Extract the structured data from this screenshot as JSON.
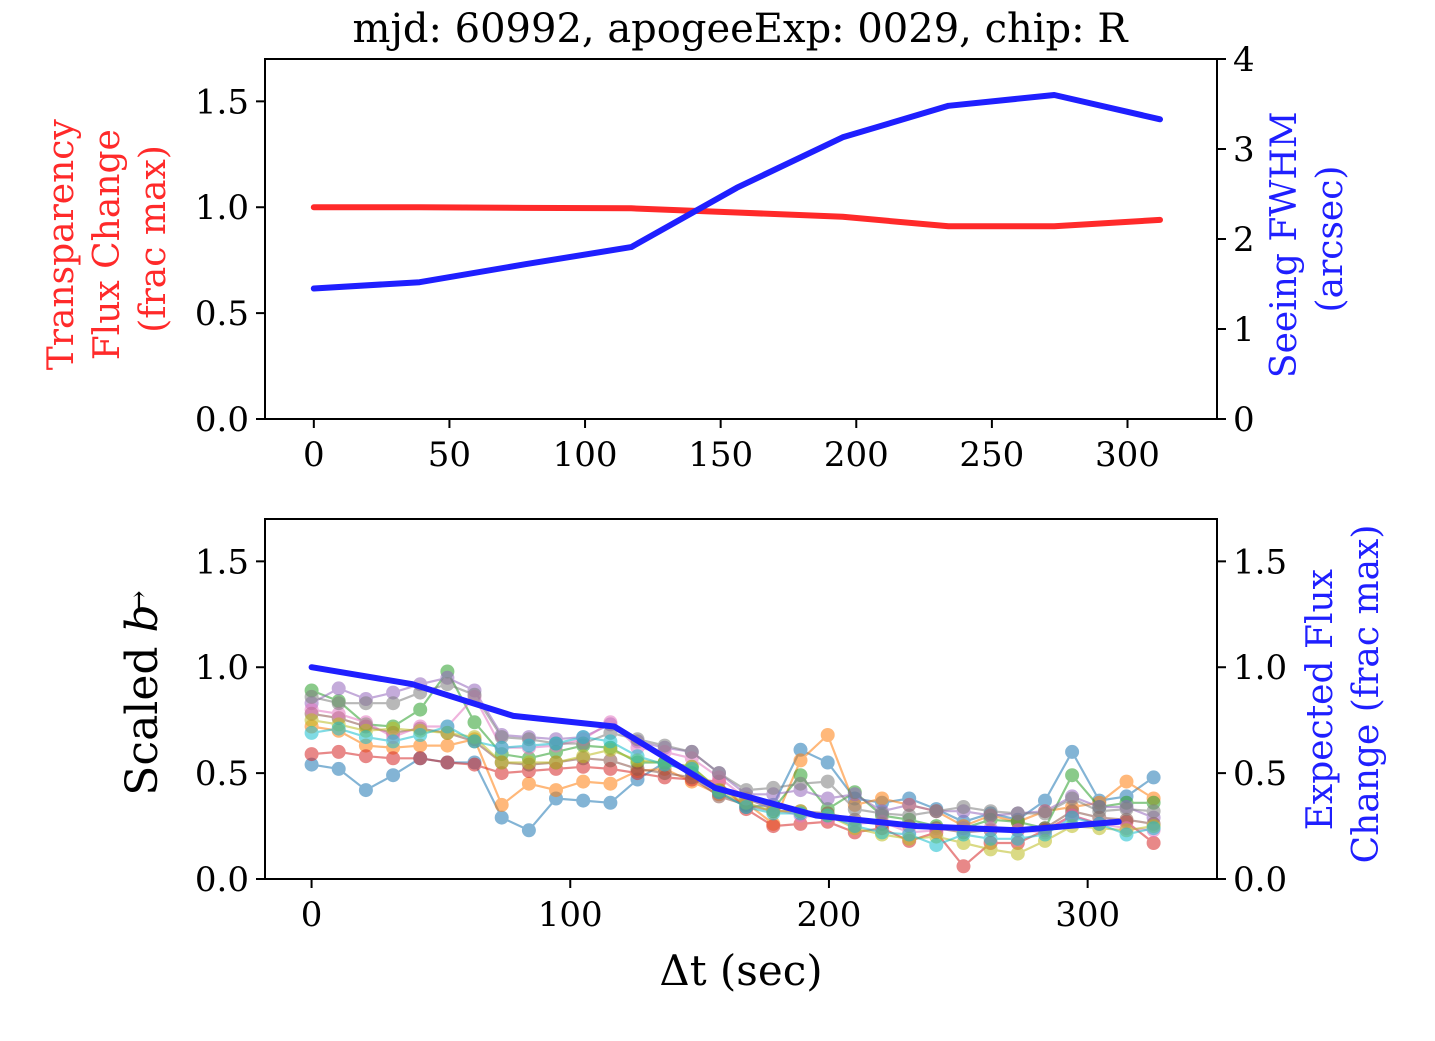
{
  "title": "mjd: 60992,  apogeeExp: 0029, chip: R",
  "colors": {
    "red": "#ff2a2a",
    "blue": "#1f1fff",
    "tab10": [
      "#1f77b4",
      "#ff7f0e",
      "#2ca02c",
      "#d62728",
      "#9467bd",
      "#8c564b",
      "#e377c2",
      "#7f7f7f",
      "#bcbd22",
      "#17becf"
    ]
  },
  "chart_data": [
    {
      "type": "line",
      "name": "top",
      "xlim": [
        -18,
        333
      ],
      "xticks": [
        0,
        50,
        100,
        150,
        200,
        250,
        300
      ],
      "ylabel_left": [
        "Transparency",
        "Flux Change",
        "(frac max)"
      ],
      "ylabel_right": [
        "Seeing FWHM",
        "(arcsec)"
      ],
      "ylim_left": [
        0,
        1.7
      ],
      "yticks_left": [
        "0.0",
        "0.5",
        "1.0",
        "1.5"
      ],
      "ylim_right": [
        0,
        4
      ],
      "yticks_right": [
        "0",
        "1",
        "2",
        "3",
        "4"
      ],
      "series": [
        {
          "name": "Transparency Flux Change",
          "axis": "left",
          "color": "red",
          "x": [
            0,
            39,
            78,
            117,
            156,
            195,
            234,
            273,
            312
          ],
          "values": [
            1.0,
            1.0,
            0.997,
            0.995,
            0.975,
            0.955,
            0.91,
            0.91,
            0.94
          ]
        },
        {
          "name": "Seeing FWHM",
          "axis": "right",
          "color": "blue",
          "x": [
            0,
            39,
            78,
            117,
            156,
            195,
            234,
            273,
            312
          ],
          "values": [
            1.45,
            1.52,
            1.72,
            1.91,
            2.57,
            3.13,
            3.48,
            3.6,
            3.33
          ]
        }
      ]
    },
    {
      "type": "line",
      "name": "bottom",
      "xlim": [
        -18,
        350
      ],
      "xticks": [
        0,
        100,
        200,
        300
      ],
      "xlabel": "Δt (sec)",
      "ylabel_left_text": "Scaled ",
      "ylabel_left_symbol": "b",
      "ylabel_right": [
        "Expected Flux",
        "Change (frac max)"
      ],
      "ylim": [
        0,
        1.7
      ],
      "yticks_left": [
        "0.0",
        "0.5",
        "1.0",
        "1.5"
      ],
      "yticks_right": [
        "0.0",
        "0.5",
        "1.0",
        "1.5"
      ],
      "fibers_x": [
        0,
        10.5,
        21,
        31.5,
        42,
        52.5,
        63,
        73.5,
        84,
        94.5,
        105,
        115.5,
        126,
        136.5,
        147,
        157.5,
        168,
        178.5,
        189,
        199.5,
        210,
        220.5,
        231,
        241.5,
        252,
        262.5,
        273,
        283.5,
        294,
        304.5,
        315,
        325.5
      ],
      "fibers": [
        {
          "color": 0,
          "values": [
            0.54,
            0.52,
            0.42,
            0.49,
            0.57,
            0.55,
            0.55,
            0.29,
            0.23,
            0.38,
            0.37,
            0.36,
            0.47,
            0.55,
            0.5,
            0.41,
            0.34,
            0.35,
            0.61,
            0.55,
            0.38,
            0.36,
            0.38,
            0.33,
            0.27,
            0.31,
            0.28,
            0.37,
            0.6,
            0.37,
            0.39,
            0.48
          ]
        },
        {
          "color": 1,
          "values": [
            0.72,
            0.7,
            0.63,
            0.62,
            0.63,
            0.63,
            0.66,
            0.35,
            0.45,
            0.42,
            0.46,
            0.45,
            0.51,
            0.52,
            0.46,
            0.4,
            0.36,
            0.26,
            0.56,
            0.68,
            0.35,
            0.38,
            0.35,
            0.32,
            0.25,
            0.3,
            0.27,
            0.32,
            0.34,
            0.36,
            0.46,
            0.38
          ]
        },
        {
          "color": 2,
          "values": [
            0.89,
            0.84,
            0.73,
            0.72,
            0.8,
            0.98,
            0.74,
            0.59,
            0.57,
            0.6,
            0.63,
            0.62,
            0.55,
            0.55,
            0.53,
            0.42,
            0.38,
            0.33,
            0.49,
            0.33,
            0.41,
            0.3,
            0.28,
            0.25,
            0.24,
            0.28,
            0.27,
            0.24,
            0.49,
            0.34,
            0.36,
            0.36
          ]
        },
        {
          "color": 3,
          "values": [
            0.59,
            0.6,
            0.58,
            0.57,
            0.57,
            0.55,
            0.54,
            0.5,
            0.51,
            0.52,
            0.53,
            0.52,
            0.5,
            0.48,
            0.47,
            0.46,
            0.33,
            0.25,
            0.26,
            0.27,
            0.22,
            0.24,
            0.18,
            0.22,
            0.06,
            0.17,
            0.17,
            0.23,
            0.3,
            0.26,
            0.27,
            0.17
          ]
        },
        {
          "color": 4,
          "values": [
            0.83,
            0.9,
            0.85,
            0.88,
            0.92,
            0.95,
            0.89,
            0.68,
            0.67,
            0.66,
            0.67,
            0.73,
            0.65,
            0.62,
            0.6,
            0.5,
            0.4,
            0.4,
            0.42,
            0.38,
            0.4,
            0.32,
            0.35,
            0.32,
            0.32,
            0.3,
            0.31,
            0.32,
            0.39,
            0.34,
            0.34,
            0.29
          ]
        },
        {
          "color": 5,
          "values": [
            0.78,
            0.76,
            0.72,
            0.69,
            0.71,
            0.69,
            0.65,
            0.55,
            0.54,
            0.55,
            0.57,
            0.56,
            0.52,
            0.5,
            0.48,
            0.39,
            0.35,
            0.32,
            0.32,
            0.31,
            0.28,
            0.26,
            0.25,
            0.24,
            0.22,
            0.23,
            0.23,
            0.24,
            0.32,
            0.29,
            0.28,
            0.26
          ]
        },
        {
          "color": 6,
          "values": [
            0.8,
            0.78,
            0.74,
            0.67,
            0.72,
            0.72,
            0.86,
            0.62,
            0.62,
            0.63,
            0.66,
            0.74,
            0.62,
            0.6,
            0.57,
            0.48,
            0.38,
            0.33,
            0.3,
            0.29,
            0.26,
            0.27,
            0.22,
            0.23,
            0.24,
            0.24,
            0.23,
            0.22,
            0.3,
            0.26,
            0.24,
            0.23
          ]
        },
        {
          "color": 7,
          "values": [
            0.86,
            0.83,
            0.83,
            0.83,
            0.88,
            0.92,
            0.87,
            0.67,
            0.66,
            0.64,
            0.64,
            0.69,
            0.66,
            0.63,
            0.6,
            0.5,
            0.42,
            0.43,
            0.45,
            0.46,
            0.33,
            0.31,
            0.3,
            0.32,
            0.34,
            0.32,
            0.31,
            0.31,
            0.38,
            0.32,
            0.33,
            0.32
          ]
        },
        {
          "color": 8,
          "values": [
            0.75,
            0.73,
            0.7,
            0.71,
            0.7,
            0.69,
            0.67,
            0.55,
            0.55,
            0.55,
            0.58,
            0.61,
            0.56,
            0.55,
            0.53,
            0.42,
            0.36,
            0.32,
            0.32,
            0.3,
            0.24,
            0.21,
            0.19,
            0.2,
            0.17,
            0.14,
            0.12,
            0.18,
            0.25,
            0.24,
            0.23,
            0.25
          ]
        },
        {
          "color": 9,
          "values": [
            0.69,
            0.71,
            0.67,
            0.65,
            0.68,
            0.72,
            0.65,
            0.62,
            0.63,
            0.64,
            0.67,
            0.65,
            0.58,
            0.54,
            0.52,
            0.41,
            0.34,
            0.31,
            0.31,
            0.3,
            0.25,
            0.22,
            0.21,
            0.16,
            0.21,
            0.19,
            0.19,
            0.21,
            0.29,
            0.26,
            0.21,
            0.24
          ]
        }
      ],
      "expected": {
        "name": "Expected Flux Change",
        "color": "blue",
        "x": [
          0,
          39,
          78,
          117,
          156,
          195,
          234,
          273,
          312
        ],
        "values": [
          1.0,
          0.92,
          0.77,
          0.72,
          0.43,
          0.3,
          0.25,
          0.23,
          0.27
        ]
      }
    }
  ]
}
